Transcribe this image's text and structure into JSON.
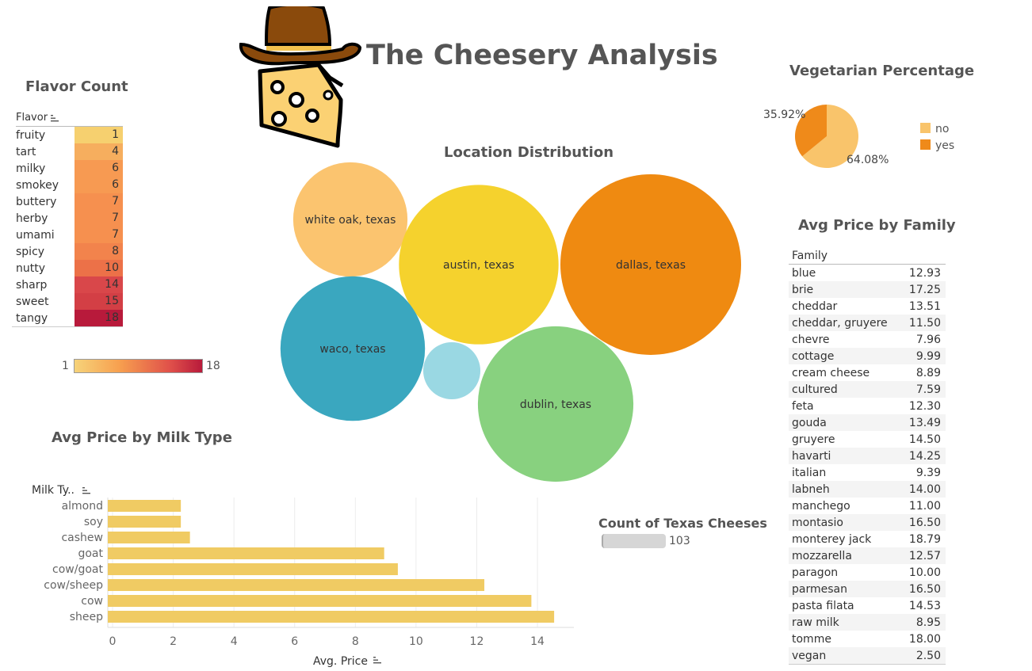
{
  "page": {
    "title": "The Cheesery Analysis"
  },
  "icons": {
    "logo": "cowboy-cheese-icon",
    "sort": "sort-icon"
  },
  "colors": {
    "heat_low": "#f6d37a",
    "heat_high": "#b81a3b",
    "veg_no": "#f9c46b",
    "veg_yes": "#ef8a1a",
    "milk_bar": "#f0cb63"
  },
  "flavor": {
    "title": "Flavor Count",
    "header": "Flavor",
    "rows": [
      {
        "name": "fruity",
        "count": "1",
        "color": "#f6d06f"
      },
      {
        "name": "tart",
        "count": "4",
        "color": "#f6ae5e"
      },
      {
        "name": "milky",
        "count": "6",
        "color": "#f79a52"
      },
      {
        "name": "smokey",
        "count": "6",
        "color": "#f79a52"
      },
      {
        "name": "buttery",
        "count": "7",
        "color": "#f6904f"
      },
      {
        "name": "herby",
        "count": "7",
        "color": "#f6904f"
      },
      {
        "name": "umami",
        "count": "7",
        "color": "#f6904f"
      },
      {
        "name": "spicy",
        "count": "8",
        "color": "#f2834c"
      },
      {
        "name": "nutty",
        "count": "10",
        "color": "#ec7148"
      },
      {
        "name": "sharp",
        "count": "14",
        "color": "#d9474a"
      },
      {
        "name": "sweet",
        "count": "15",
        "color": "#d33f45"
      },
      {
        "name": "tangy",
        "count": "18",
        "color": "#b81a3b"
      }
    ],
    "legend": {
      "min": "1",
      "max": "18"
    }
  },
  "location": {
    "title": "Location Distribution",
    "bubbles": [
      {
        "label": "white oak, texas",
        "size": 20,
        "color": "#fbc46f"
      },
      {
        "label": "austin, texas",
        "size": 39,
        "color": "#f5d22d"
      },
      {
        "label": "dallas, texas",
        "size": 50,
        "color": "#ef8a11"
      },
      {
        "label": "waco, texas",
        "size": 32,
        "color": "#3aa7bf"
      },
      {
        "label": "",
        "size": 5,
        "color": "#9ad8e3"
      },
      {
        "label": "dublin, texas",
        "size": 37,
        "color": "#88d17f"
      }
    ]
  },
  "vegetarian": {
    "title": "Vegetarian Percentage",
    "slices": [
      {
        "label": "no",
        "value": 64.08,
        "text": "64.08%"
      },
      {
        "label": "yes",
        "value": 35.92,
        "text": "35.92%"
      }
    ],
    "legend": [
      "no",
      "yes"
    ]
  },
  "family": {
    "title": "Avg Price by Family",
    "header": "Family",
    "rows": [
      {
        "name": "blue",
        "value": "12.93"
      },
      {
        "name": "brie",
        "value": "17.25"
      },
      {
        "name": "cheddar",
        "value": "13.51"
      },
      {
        "name": "cheddar, gruyere",
        "value": "11.50"
      },
      {
        "name": "chevre",
        "value": "7.96"
      },
      {
        "name": "cottage",
        "value": "9.99"
      },
      {
        "name": "cream cheese",
        "value": "8.89"
      },
      {
        "name": "cultured",
        "value": "7.59"
      },
      {
        "name": "feta",
        "value": "12.30"
      },
      {
        "name": "gouda",
        "value": "13.49"
      },
      {
        "name": "gruyere",
        "value": "14.50"
      },
      {
        "name": "havarti",
        "value": "14.25"
      },
      {
        "name": "italian",
        "value": "9.39"
      },
      {
        "name": "labneh",
        "value": "14.00"
      },
      {
        "name": "manchego",
        "value": "11.00"
      },
      {
        "name": "montasio",
        "value": "16.50"
      },
      {
        "name": "monterey jack",
        "value": "18.79"
      },
      {
        "name": "mozzarella",
        "value": "12.57"
      },
      {
        "name": "paragon",
        "value": "10.00"
      },
      {
        "name": "parmesan",
        "value": "16.50"
      },
      {
        "name": "pasta filata",
        "value": "14.53"
      },
      {
        "name": "raw milk",
        "value": "8.95"
      },
      {
        "name": "tomme",
        "value": "18.00"
      },
      {
        "name": "vegan",
        "value": "2.50"
      }
    ]
  },
  "count": {
    "title": "Count of Texas Cheeses",
    "value": "103"
  },
  "chart_data": {
    "type": "bar",
    "orientation": "horizontal",
    "title": "Avg Price by Milk Type",
    "ylabel": "Milk Ty..",
    "xlabel": "Avg. Price",
    "categories": [
      "almond",
      "soy",
      "cashew",
      "goat",
      "cow/goat",
      "cow/sheep",
      "cow",
      "sheep"
    ],
    "values": [
      2.25,
      2.25,
      2.55,
      8.95,
      9.4,
      12.25,
      13.8,
      14.55
    ],
    "xlim": [
      0,
      15.2
    ],
    "xticks": [
      0,
      2,
      4,
      6,
      8,
      10,
      12,
      14
    ],
    "xtick_labels": [
      "0",
      "2",
      "4",
      "6",
      "8",
      "10",
      "12",
      "14"
    ],
    "grid": true
  }
}
